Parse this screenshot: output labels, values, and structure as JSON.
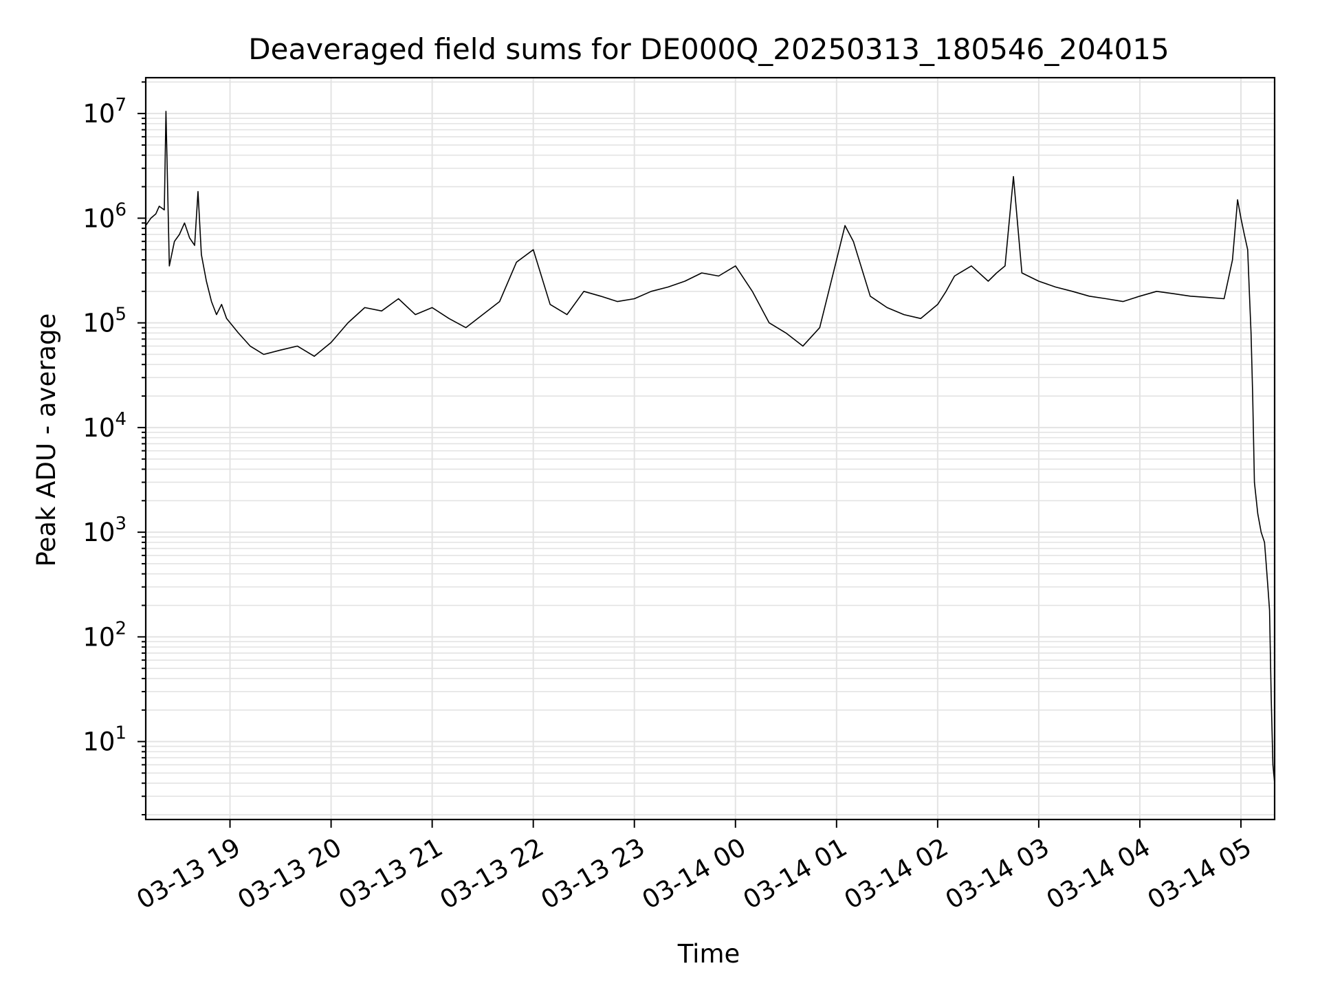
{
  "chart_data": {
    "type": "line",
    "title": "Deaveraged field sums for DE000Q_20250313_180546_204015",
    "xlabel": "Time",
    "ylabel": "Peak ADU - average",
    "y_scale": "log",
    "ylim": [
      1.8,
      22000000
    ],
    "xlim": [
      "2025-03-13 18:10",
      "2025-03-14 05:20"
    ],
    "grid": true,
    "line_color": "#000000",
    "grid_color": "#e3e3e3",
    "x_ticks": [
      {
        "label": "03-13 19",
        "t": "2025-03-13 19:00"
      },
      {
        "label": "03-13 20",
        "t": "2025-03-13 20:00"
      },
      {
        "label": "03-13 21",
        "t": "2025-03-13 21:00"
      },
      {
        "label": "03-13 22",
        "t": "2025-03-13 22:00"
      },
      {
        "label": "03-13 23",
        "t": "2025-03-13 23:00"
      },
      {
        "label": "03-14 00",
        "t": "2025-03-14 00:00"
      },
      {
        "label": "03-14 01",
        "t": "2025-03-14 01:00"
      },
      {
        "label": "03-14 02",
        "t": "2025-03-14 02:00"
      },
      {
        "label": "03-14 03",
        "t": "2025-03-14 03:00"
      },
      {
        "label": "03-14 04",
        "t": "2025-03-14 04:00"
      },
      {
        "label": "03-14 05",
        "t": "2025-03-14 05:00"
      }
    ],
    "y_ticks": [
      {
        "base": "10",
        "exp": "1",
        "value": 10
      },
      {
        "base": "10",
        "exp": "2",
        "value": 100
      },
      {
        "base": "10",
        "exp": "3",
        "value": 1000
      },
      {
        "base": "10",
        "exp": "4",
        "value": 10000
      },
      {
        "base": "10",
        "exp": "5",
        "value": 100000
      },
      {
        "base": "10",
        "exp": "6",
        "value": 1000000
      },
      {
        "base": "10",
        "exp": "7",
        "value": 10000000
      }
    ],
    "series": [
      {
        "x": [
          "2025-03-13 18:10",
          "2025-03-13 18:13",
          "2025-03-13 18:16",
          "2025-03-13 18:18",
          "2025-03-13 18:21",
          "2025-03-13 18:22",
          "2025-03-13 18:24",
          "2025-03-13 18:27",
          "2025-03-13 18:30",
          "2025-03-13 18:33",
          "2025-03-13 18:36",
          "2025-03-13 18:39",
          "2025-03-13 18:41",
          "2025-03-13 18:43",
          "2025-03-13 18:46",
          "2025-03-13 18:49",
          "2025-03-13 18:52",
          "2025-03-13 18:55",
          "2025-03-13 18:58",
          "2025-03-13 19:05",
          "2025-03-13 19:12",
          "2025-03-13 19:20",
          "2025-03-13 19:30",
          "2025-03-13 19:40",
          "2025-03-13 19:50",
          "2025-03-13 20:00",
          "2025-03-13 20:10",
          "2025-03-13 20:20",
          "2025-03-13 20:30",
          "2025-03-13 20:40",
          "2025-03-13 20:50",
          "2025-03-13 21:00",
          "2025-03-13 21:10",
          "2025-03-13 21:20",
          "2025-03-13 21:30",
          "2025-03-13 21:40",
          "2025-03-13 21:50",
          "2025-03-13 22:00",
          "2025-03-13 22:10",
          "2025-03-13 22:20",
          "2025-03-13 22:30",
          "2025-03-13 22:40",
          "2025-03-13 22:50",
          "2025-03-13 23:00",
          "2025-03-13 23:10",
          "2025-03-13 23:20",
          "2025-03-13 23:30",
          "2025-03-13 23:40",
          "2025-03-13 23:50",
          "2025-03-14 00:00",
          "2025-03-14 00:10",
          "2025-03-14 00:20",
          "2025-03-14 00:30",
          "2025-03-14 00:40",
          "2025-03-14 00:50",
          "2025-03-14 01:00",
          "2025-03-14 01:05",
          "2025-03-14 01:10",
          "2025-03-14 01:20",
          "2025-03-14 01:30",
          "2025-03-14 01:40",
          "2025-03-14 01:50",
          "2025-03-14 02:00",
          "2025-03-14 02:05",
          "2025-03-14 02:10",
          "2025-03-14 02:20",
          "2025-03-14 02:30",
          "2025-03-14 02:35",
          "2025-03-14 02:40",
          "2025-03-14 02:45",
          "2025-03-14 02:50",
          "2025-03-14 03:00",
          "2025-03-14 03:10",
          "2025-03-14 03:20",
          "2025-03-14 03:30",
          "2025-03-14 03:40",
          "2025-03-14 03:50",
          "2025-03-14 04:00",
          "2025-03-14 04:10",
          "2025-03-14 04:20",
          "2025-03-14 04:30",
          "2025-03-14 04:40",
          "2025-03-14 04:50",
          "2025-03-14 04:55",
          "2025-03-14 04:58",
          "2025-03-14 05:00",
          "2025-03-14 05:02",
          "2025-03-14 05:04",
          "2025-03-14 05:05",
          "2025-03-14 05:06",
          "2025-03-14 05:07",
          "2025-03-14 05:08",
          "2025-03-14 05:10",
          "2025-03-14 05:12",
          "2025-03-14 05:14",
          "2025-03-14 05:15",
          "2025-03-14 05:16",
          "2025-03-14 05:17",
          "2025-03-14 05:18",
          "2025-03-14 05:19",
          "2025-03-14 05:20"
        ],
        "values": [
          850000,
          1000000,
          1100000,
          1300000,
          1200000,
          10500000,
          350000,
          600000,
          700000,
          900000,
          650000,
          550000,
          1800000,
          450000,
          250000,
          160000,
          120000,
          150000,
          110000,
          80000,
          60000,
          50000,
          55000,
          60000,
          48000,
          65000,
          100000,
          140000,
          130000,
          170000,
          120000,
          140000,
          110000,
          90000,
          120000,
          160000,
          380000,
          500000,
          150000,
          120000,
          200000,
          180000,
          160000,
          170000,
          200000,
          220000,
          250000,
          300000,
          280000,
          350000,
          200000,
          100000,
          80000,
          60000,
          90000,
          400000,
          850000,
          600000,
          180000,
          140000,
          120000,
          110000,
          150000,
          200000,
          280000,
          350000,
          250000,
          300000,
          350000,
          2500000,
          300000,
          250000,
          220000,
          200000,
          180000,
          170000,
          160000,
          180000,
          200000,
          190000,
          180000,
          175000,
          170000,
          400000,
          1500000,
          1000000,
          700000,
          500000,
          200000,
          80000,
          20000,
          3000,
          1500,
          1000,
          800,
          500,
          300,
          180,
          25,
          6,
          4
        ]
      }
    ]
  }
}
